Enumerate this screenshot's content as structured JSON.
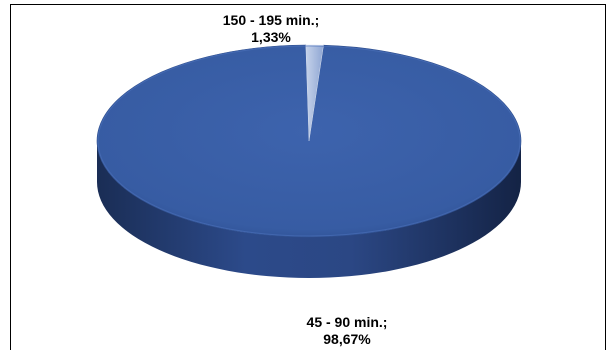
{
  "chart_data": {
    "type": "pie",
    "style": "3d",
    "title": "",
    "slices": [
      {
        "label": "45 - 90 min.",
        "value": 98.67,
        "label_lines": [
          "45 - 90 min.;",
          "98,67%"
        ],
        "color": "#3a5fa6"
      },
      {
        "label": "150 - 195 min.",
        "value": 1.33,
        "label_lines": [
          "150 - 195 min.;",
          "1,33%"
        ],
        "color": "#9fb3d9"
      }
    ],
    "legend": "none"
  }
}
